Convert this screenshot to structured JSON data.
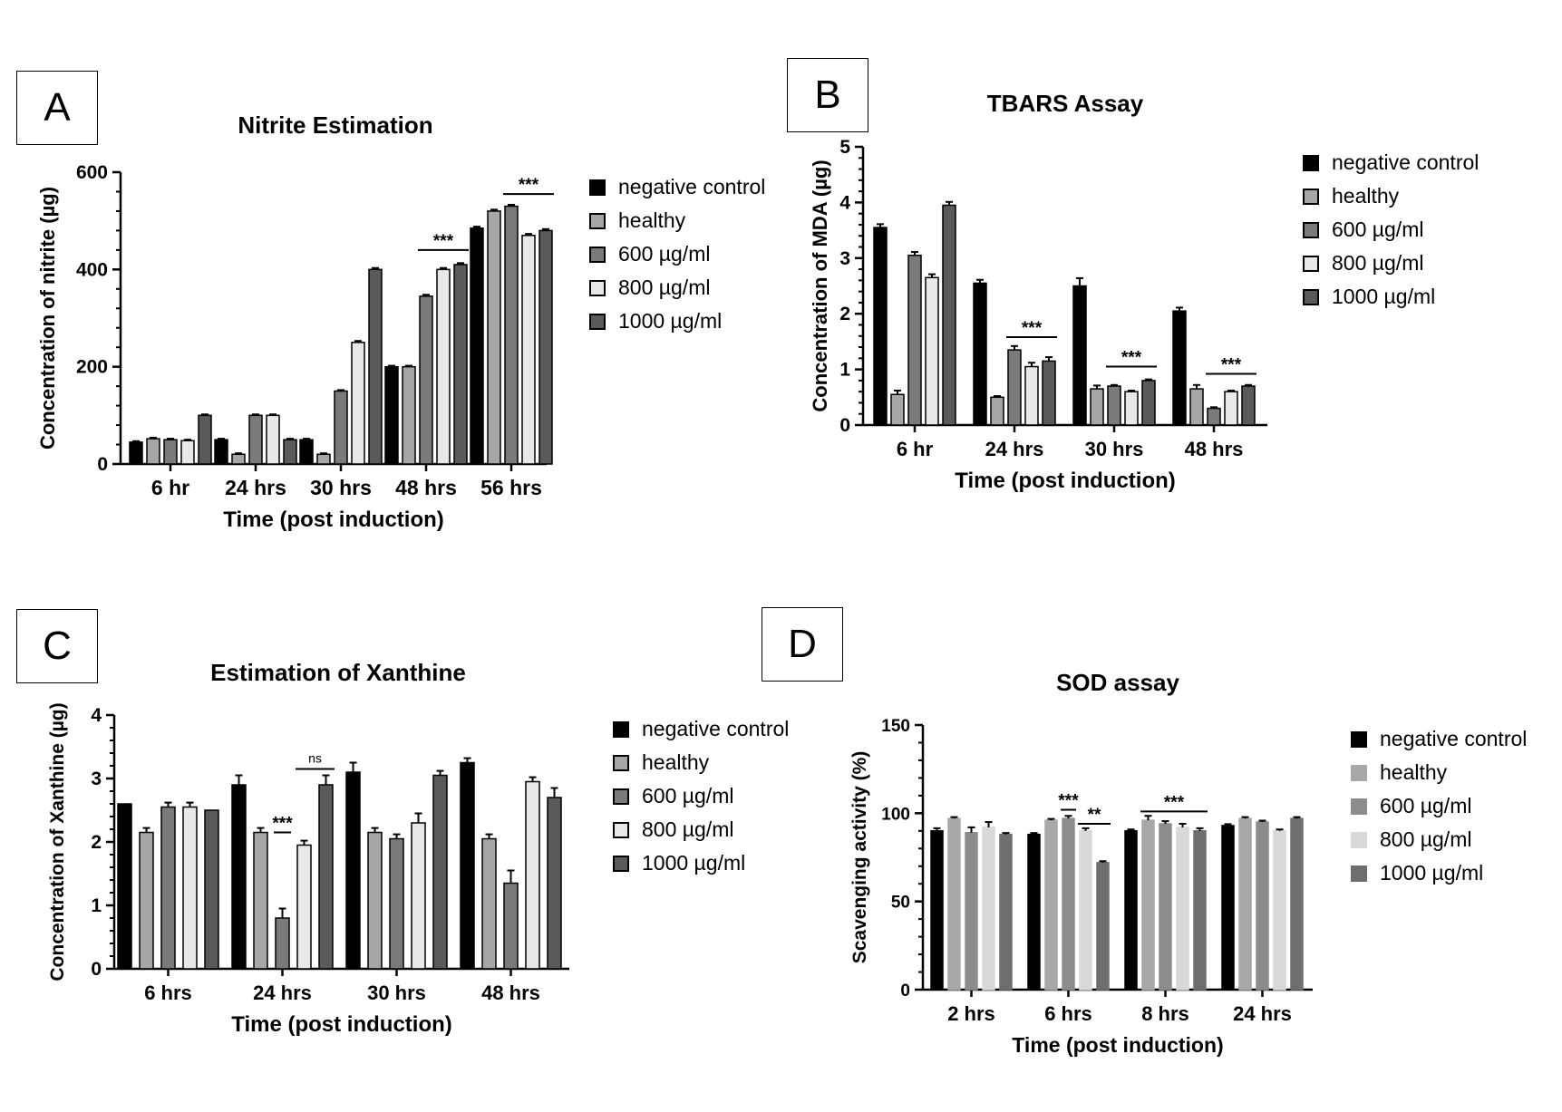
{
  "panels": {
    "A": {
      "label": "A"
    },
    "B": {
      "label": "B"
    },
    "C": {
      "label": "C"
    },
    "D": {
      "label": "D"
    }
  },
  "series_styles": {
    "gray_style": [
      {
        "fill": "#000000",
        "stroke": "#000000"
      },
      {
        "fill": "#a6a6a6",
        "stroke": "#000000"
      },
      {
        "fill": "#7a7a7a",
        "stroke": "#000000"
      },
      {
        "fill": "#e8e8e8",
        "stroke": "#000000"
      },
      {
        "fill": "#5a5a5a",
        "stroke": "#000000"
      }
    ],
    "flat_style": [
      {
        "fill": "#000000",
        "stroke": "#000000"
      },
      {
        "fill": "#a8a8a8",
        "stroke": "#a8a8a8"
      },
      {
        "fill": "#8c8c8c",
        "stroke": "#8c8c8c"
      },
      {
        "fill": "#d9d9d9",
        "stroke": "#d9d9d9"
      },
      {
        "fill": "#6e6e6e",
        "stroke": "#6e6e6e"
      }
    ]
  },
  "chart_data": [
    {
      "id": "A",
      "type": "bar",
      "title": "Nitrite Estimation",
      "xlabel": "Time (post induction)",
      "ylabel": "Concentration of nitrite (µg)",
      "ylim": [
        0,
        600
      ],
      "yticks": [
        0,
        200,
        400,
        600
      ],
      "categories": [
        "6 hr",
        "24 hrs",
        "30 hrs",
        "48 hrs",
        "56 hrs"
      ],
      "legend_position": "right",
      "series": [
        {
          "name": "negative control",
          "values": [
            45,
            50,
            50,
            200,
            485
          ],
          "errors": [
            2,
            2,
            2,
            2,
            3
          ]
        },
        {
          "name": "healthy",
          "values": [
            52,
            20,
            20,
            200,
            520
          ],
          "errors": [
            2,
            2,
            2,
            2,
            3
          ]
        },
        {
          "name": "600 µg/ml",
          "values": [
            50,
            100,
            150,
            345,
            530
          ],
          "errors": [
            2,
            2,
            2,
            3,
            3
          ]
        },
        {
          "name": "800 µg/ml",
          "values": [
            48,
            100,
            250,
            400,
            470
          ],
          "errors": [
            2,
            2,
            3,
            3,
            3
          ]
        },
        {
          "name": "1000 µg/ml",
          "values": [
            100,
            50,
            400,
            410,
            480
          ],
          "errors": [
            2,
            2,
            3,
            3,
            3
          ]
        }
      ],
      "annotations": [
        {
          "text": "***",
          "category": 3,
          "from_series": 2,
          "to_series": 4,
          "y": 440
        },
        {
          "text": "***",
          "category": 4,
          "from_series": 2,
          "to_series": 4,
          "y": 555
        }
      ]
    },
    {
      "id": "B",
      "type": "bar",
      "title": "TBARS Assay",
      "xlabel": "Time (post induction)",
      "ylabel": "Concentration of MDA (µg)",
      "ylim": [
        0,
        5
      ],
      "yticks": [
        0,
        1,
        2,
        3,
        4,
        5
      ],
      "categories": [
        "6 hr",
        "24 hrs",
        "30 hrs",
        "48 hrs"
      ],
      "legend_position": "right",
      "series": [
        {
          "name": "negative control",
          "values": [
            3.55,
            2.55,
            2.5,
            2.05
          ],
          "errors": [
            0.06,
            0.06,
            0.14,
            0.06
          ]
        },
        {
          "name": "healthy",
          "values": [
            0.55,
            0.5,
            0.65,
            0.65
          ],
          "errors": [
            0.07,
            0.02,
            0.06,
            0.07
          ]
        },
        {
          "name": "600 µg/ml",
          "values": [
            3.05,
            1.35,
            0.7,
            0.3
          ],
          "errors": [
            0.06,
            0.07,
            0.02,
            0.02
          ]
        },
        {
          "name": "800 µg/ml",
          "values": [
            2.65,
            1.05,
            0.6,
            0.6
          ],
          "errors": [
            0.06,
            0.07,
            0.02,
            0.02
          ]
        },
        {
          "name": "1000 µg/ml",
          "values": [
            3.95,
            1.15,
            0.8,
            0.7
          ],
          "errors": [
            0.06,
            0.07,
            0.02,
            0.02
          ]
        }
      ],
      "annotations": [
        {
          "text": "***",
          "category": 1,
          "from_series": 2,
          "to_series": 4,
          "y": 1.58
        },
        {
          "text": "***",
          "category": 2,
          "from_series": 2,
          "to_series": 4,
          "y": 1.05
        },
        {
          "text": "***",
          "category": 3,
          "from_series": 2,
          "to_series": 4,
          "y": 0.92
        }
      ]
    },
    {
      "id": "C",
      "type": "bar",
      "title": "Estimation of Xanthine",
      "xlabel": "Time (post induction)",
      "ylabel": "Concentration of Xanthine (µg)",
      "ylim": [
        0,
        4
      ],
      "yticks": [
        0,
        1,
        2,
        3,
        4
      ],
      "categories": [
        "6 hrs",
        "24 hrs",
        "30 hrs",
        "48 hrs"
      ],
      "legend_position": "right",
      "series": [
        {
          "name": "negative control",
          "values": [
            2.6,
            2.9,
            3.1,
            3.25
          ],
          "errors": [
            0,
            0.15,
            0.15,
            0.07
          ]
        },
        {
          "name": "healthy",
          "values": [
            2.15,
            2.15,
            2.15,
            2.05
          ],
          "errors": [
            0.07,
            0.07,
            0.07,
            0.07
          ]
        },
        {
          "name": "600 µg/ml",
          "values": [
            2.55,
            0.8,
            2.05,
            1.35
          ],
          "errors": [
            0.07,
            0.15,
            0.07,
            0.2
          ]
        },
        {
          "name": "800 µg/ml",
          "values": [
            2.55,
            1.95,
            2.3,
            2.95
          ],
          "errors": [
            0.07,
            0.07,
            0.15,
            0.07
          ]
        },
        {
          "name": "1000 µg/ml",
          "values": [
            2.5,
            2.9,
            3.05,
            2.7
          ],
          "errors": [
            0,
            0.15,
            0.07,
            0.15
          ]
        }
      ],
      "annotations": [
        {
          "text": "***",
          "category": 1,
          "from_series": 2,
          "to_series": 2,
          "y": 2.15
        },
        {
          "text": "ns",
          "category": 1,
          "from_series": 3,
          "to_series": 4,
          "y": 3.15
        }
      ]
    },
    {
      "id": "D",
      "type": "bar",
      "title": "SOD assay",
      "xlabel": "Time (post induction)",
      "ylabel": "Scavenging activity (%)",
      "ylim": [
        0,
        150
      ],
      "yticks": [
        0,
        50,
        100,
        150
      ],
      "categories": [
        "2 hrs",
        "6 hrs",
        "8 hrs",
        "24 hrs"
      ],
      "legend_position": "right",
      "series": [
        {
          "name": "negative control",
          "values": [
            90,
            88,
            90,
            93
          ],
          "errors": [
            1.5,
            0.8,
            0.8,
            0.8
          ]
        },
        {
          "name": "healthy",
          "values": [
            97,
            96,
            96,
            97
          ],
          "errors": [
            0.8,
            0.8,
            2.5,
            0.8
          ]
        },
        {
          "name": "600 µg/ml",
          "values": [
            89,
            97,
            94,
            95
          ],
          "errors": [
            3,
            1.5,
            1.5,
            0.8
          ]
        },
        {
          "name": "800 µg/ml",
          "values": [
            92,
            90,
            92,
            90
          ],
          "errors": [
            3,
            1.5,
            2,
            0.8
          ]
        },
        {
          "name": "1000 µg/ml",
          "values": [
            88,
            72,
            90,
            97
          ],
          "errors": [
            0.8,
            0.8,
            1.5,
            0.8
          ]
        }
      ],
      "annotations": [
        {
          "text": "***",
          "category": 1,
          "from_series": 2,
          "to_series": 2,
          "y": 102
        },
        {
          "text": "**",
          "category": 1,
          "from_series": 3,
          "to_series": 4,
          "y": 94
        },
        {
          "text": "***",
          "category": 2,
          "from_series": 1,
          "to_series": 4,
          "y": 101
        }
      ]
    }
  ]
}
